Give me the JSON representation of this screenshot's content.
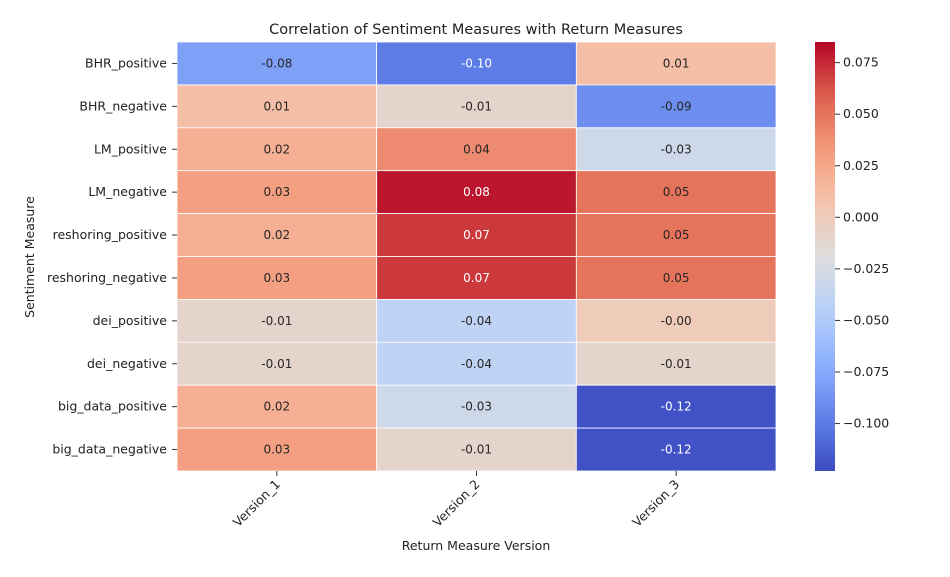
{
  "chart_data": {
    "type": "heatmap",
    "title": "Correlation of Sentiment Measures with Return Measures",
    "xlabel": "Return Measure Version",
    "ylabel": "Sentiment Measure",
    "x_categories": [
      "Version_1",
      "Version_2",
      "Version_3"
    ],
    "y_categories": [
      "BHR_positive",
      "BHR_negative",
      "LM_positive",
      "LM_negative",
      "reshoring_positive",
      "reshoring_negative",
      "dei_positive",
      "dei_negative",
      "big_data_positive",
      "big_data_negative"
    ],
    "values": [
      [
        -0.08,
        -0.1,
        0.01
      ],
      [
        0.01,
        -0.01,
        -0.09
      ],
      [
        0.02,
        0.04,
        -0.03
      ],
      [
        0.03,
        0.08,
        0.05
      ],
      [
        0.02,
        0.07,
        0.05
      ],
      [
        0.03,
        0.07,
        0.05
      ],
      [
        -0.01,
        -0.04,
        -0.0
      ],
      [
        -0.01,
        -0.04,
        -0.01
      ],
      [
        0.02,
        -0.03,
        -0.12
      ],
      [
        0.03,
        -0.01,
        -0.12
      ]
    ],
    "cell_labels": [
      [
        "-0.08",
        "-0.10",
        "0.01"
      ],
      [
        "0.01",
        "-0.01",
        "-0.09"
      ],
      [
        "0.02",
        "0.04",
        "-0.03"
      ],
      [
        "0.03",
        "0.08",
        "0.05"
      ],
      [
        "0.02",
        "0.07",
        "0.05"
      ],
      [
        "0.03",
        "0.07",
        "0.05"
      ],
      [
        "-0.01",
        "-0.04",
        "-0.00"
      ],
      [
        "-0.01",
        "-0.04",
        "-0.01"
      ],
      [
        "0.02",
        "-0.03",
        "-0.12"
      ],
      [
        "0.03",
        "-0.01",
        "-0.12"
      ]
    ],
    "colormap": "coolwarm",
    "vmin": -0.123,
    "vmax": 0.085,
    "colorbar_ticks": [
      0.075,
      0.05,
      0.025,
      0.0,
      -0.025,
      -0.05,
      -0.075,
      -0.1
    ],
    "colorbar_tick_labels": [
      "0.075",
      "0.050",
      "0.025",
      "0.000",
      "−0.025",
      "−0.050",
      "−0.075",
      "−0.100"
    ]
  }
}
